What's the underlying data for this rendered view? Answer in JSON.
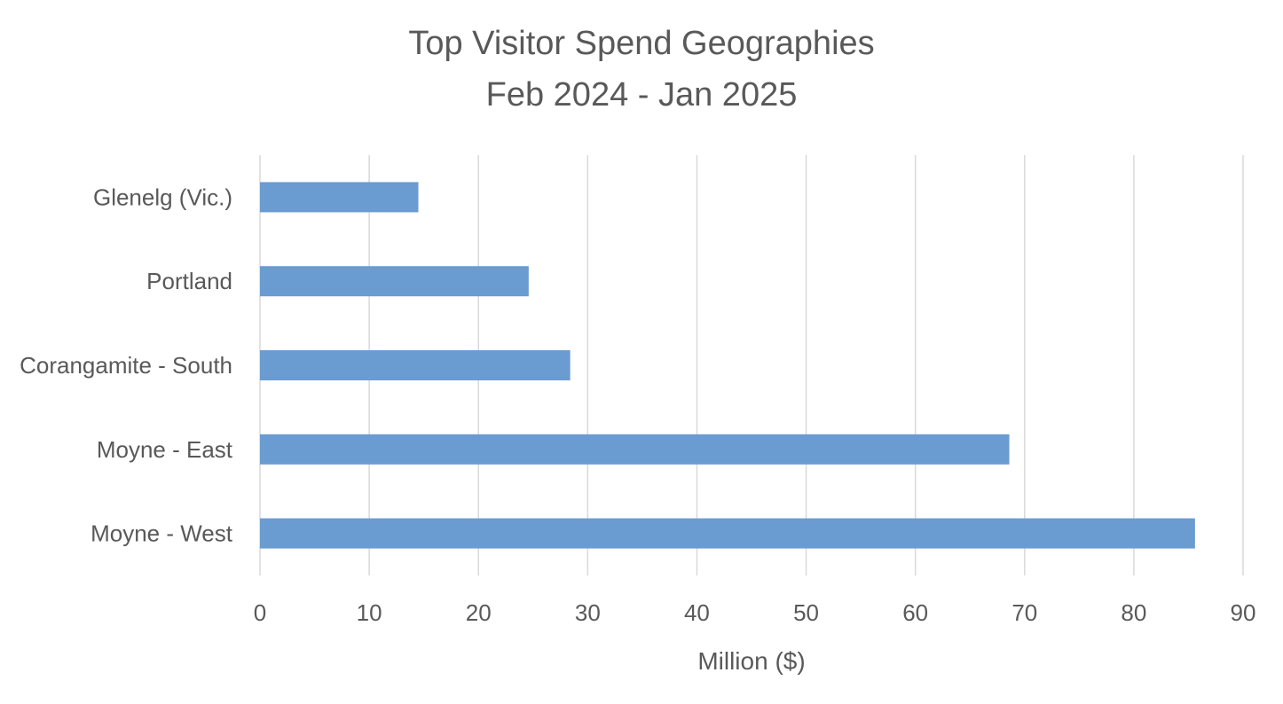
{
  "chart_data": {
    "type": "bar",
    "orientation": "horizontal",
    "title": [
      "Top Visitor Spend Geographies",
      "Feb 2024 - Jan 2025"
    ],
    "xlabel": "Million ($)",
    "ylabel": "",
    "categories": [
      "Glenelg (Vic.)",
      "Portland",
      "Corangamite - South",
      "Moyne - East",
      "Moyne - West"
    ],
    "values": [
      14.5,
      24.6,
      28.4,
      68.6,
      85.6
    ],
    "xlim": [
      0,
      90
    ],
    "xticks": [
      0,
      10,
      20,
      30,
      40,
      50,
      60,
      70,
      80,
      90
    ],
    "grid": "vertical",
    "legend": "none",
    "colors": {
      "bar": "#6a9bd1",
      "grid": "#d9d9d9",
      "text": "#595959"
    }
  }
}
